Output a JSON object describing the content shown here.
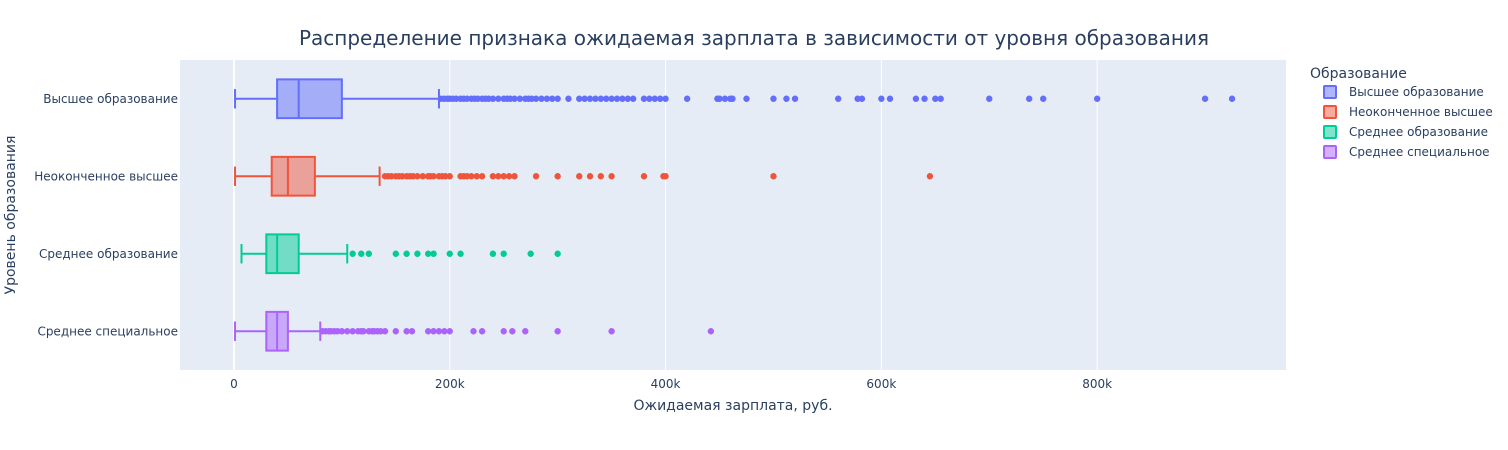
{
  "chart_data": {
    "type": "box",
    "orientation": "horizontal",
    "title": "Распределение признака ожидаемая зарплата в зависимости от уровня образования",
    "xlabel": "Ожидаемая зарплата, руб.",
    "ylabel": "Уровень образования",
    "xlim": [
      -50000,
      975000
    ],
    "x_ticks": [
      0,
      200000,
      400000,
      600000,
      800000
    ],
    "x_tick_labels": [
      "0",
      "200k",
      "400k",
      "600k",
      "800k"
    ],
    "grid": true,
    "legend": {
      "title": "Образование",
      "placement": "top-right"
    },
    "categories": [
      "Высшее образование",
      "Неоконченное высшее",
      "Среднее образование",
      "Среднее специальное"
    ],
    "series": [
      {
        "name": "Высшее образование",
        "color": "#636efa",
        "min": 1000,
        "q1": 40000,
        "median": 60000,
        "q3": 100000,
        "upper_fence": 190000,
        "outliers": [
          192000,
          195000,
          198000,
          200000,
          203000,
          206000,
          210000,
          213000,
          216000,
          220000,
          223000,
          226000,
          230000,
          233000,
          236000,
          240000,
          245000,
          250000,
          253000,
          256000,
          260000,
          265000,
          270000,
          273000,
          276000,
          280000,
          285000,
          290000,
          295000,
          300000,
          310000,
          320000,
          325000,
          330000,
          335000,
          340000,
          345000,
          350000,
          355000,
          360000,
          365000,
          370000,
          380000,
          385000,
          390000,
          395000,
          400000,
          420000,
          448000,
          450000,
          455000,
          460000,
          462000,
          475000,
          500000,
          512000,
          520000,
          560000,
          578000,
          582000,
          600000,
          608000,
          632000,
          640000,
          650000,
          655000,
          700000,
          737000,
          750000,
          800000,
          900000,
          925000
        ]
      },
      {
        "name": "Неоконченное высшее",
        "color": "#ef553b",
        "min": 1000,
        "q1": 35000,
        "median": 50000,
        "q3": 75000,
        "upper_fence": 135000,
        "outliers": [
          140000,
          143000,
          146000,
          150000,
          153000,
          156000,
          160000,
          163000,
          166000,
          170000,
          175000,
          180000,
          182000,
          185000,
          190000,
          193000,
          196000,
          200000,
          210000,
          213000,
          216000,
          220000,
          225000,
          230000,
          240000,
          245000,
          250000,
          255000,
          260000,
          280000,
          300000,
          320000,
          330000,
          340000,
          350000,
          380000,
          398000,
          400000,
          500000,
          645000
        ]
      },
      {
        "name": "Среднее образование",
        "color": "#00cc96",
        "min": 7000,
        "q1": 30000,
        "median": 40000,
        "q3": 60000,
        "upper_fence": 105000,
        "outliers": [
          110000,
          118000,
          125000,
          150000,
          160000,
          170000,
          180000,
          185000,
          200000,
          210000,
          240000,
          250000,
          275000,
          300000
        ]
      },
      {
        "name": "Среднее специальное",
        "color": "#ab63fa",
        "min": 1000,
        "q1": 30000,
        "median": 40000,
        "q3": 50000,
        "upper_fence": 80000,
        "outliers": [
          82000,
          85000,
          88000,
          90000,
          93000,
          96000,
          100000,
          105000,
          110000,
          115000,
          118000,
          120000,
          125000,
          128000,
          130000,
          133000,
          136000,
          140000,
          150000,
          160000,
          165000,
          180000,
          185000,
          190000,
          195000,
          200000,
          222000,
          230000,
          250000,
          258000,
          270000,
          300000,
          350000,
          442000
        ]
      }
    ]
  }
}
